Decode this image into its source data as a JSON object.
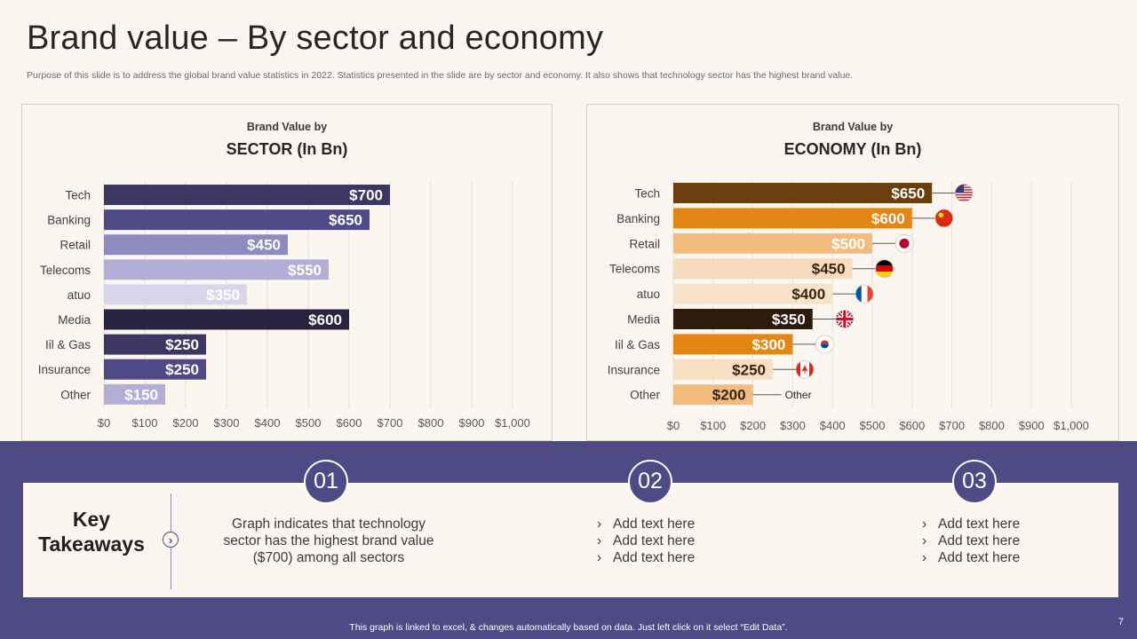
{
  "header": {
    "title": "Brand value – By sector and economy",
    "subtitle": "Purpose of this slide is to address the global brand value statistics in 2022. Statistics presented in the slide are by sector and economy. It also shows that technology sector has the highest brand value."
  },
  "colors": {
    "primary": "#4f4a86",
    "background": "#fcf6f0",
    "sector_bars": [
      "#3c3760",
      "#4f4a86",
      "#8f8ac0",
      "#b2aed6",
      "#d9d6eb",
      "#28233f",
      "#3c3760",
      "#4f4a86",
      "#b2aed6"
    ],
    "economy_bars": [
      "#6b3e0f",
      "#e48614",
      "#f2bc7e",
      "#f7dbbd",
      "#f7e3cc",
      "#2c1a0a",
      "#e48614",
      "#f7dfc4",
      "#f2bc7e"
    ]
  },
  "chart_data": [
    {
      "id": "sector",
      "type": "bar",
      "orientation": "horizontal",
      "kicker": "Brand Value by",
      "title": "SECTOR (In Bn)",
      "categories": [
        "Tech",
        "Banking",
        "Retail",
        "Telecoms",
        "atuo",
        "Media",
        "Iil & Gas",
        "Insurance",
        "Other"
      ],
      "values": [
        700,
        650,
        450,
        550,
        350,
        600,
        250,
        250,
        150
      ],
      "labels": [
        "$700",
        "$650",
        "$450",
        "$550",
        "$350",
        "$600",
        "$250",
        "$250",
        "$150"
      ],
      "xlim": [
        0,
        1000
      ],
      "xticks": [
        "$0",
        "$100",
        "$200",
        "$300",
        "$400",
        "$500",
        "$600",
        "$700",
        "$800",
        "$900",
        "$1,000"
      ],
      "grid": true
    },
    {
      "id": "economy",
      "type": "bar",
      "orientation": "horizontal",
      "kicker": "Brand Value by",
      "title": "ECONOMY (In Bn)",
      "categories": [
        "Tech",
        "Banking",
        "Retail",
        "Telecoms",
        "atuo",
        "Media",
        "Iil & Gas",
        "Insurance",
        "Other"
      ],
      "values": [
        650,
        600,
        500,
        450,
        400,
        350,
        300,
        250,
        200
      ],
      "labels": [
        "$650",
        "$600",
        "$500",
        "$450",
        "$400",
        "$350",
        "$300",
        "$250",
        "$200"
      ],
      "markers": [
        "us-flag-icon",
        "china-flag-icon",
        "japan-flag-icon",
        "germany-flag-icon",
        "france-flag-icon",
        "uk-flag-icon",
        "korea-flag-icon",
        "canada-flag-icon",
        "Other"
      ],
      "xlim": [
        0,
        1000
      ],
      "xticks": [
        "$0",
        "$100",
        "$200",
        "$300",
        "$400",
        "$500",
        "$600",
        "$700",
        "$800",
        "$900",
        "$1,000"
      ],
      "grid": true
    }
  ],
  "takeaways": {
    "title_line1": "Key",
    "title_line2": "Takeaways",
    "columns": [
      {
        "number": "01",
        "lines": [
          "Graph indicates that  technology",
          "sector has the highest brand value",
          "($700) among all sectors"
        ]
      },
      {
        "number": "02",
        "bullets": [
          "Add text here",
          "Add text here",
          "Add text here"
        ]
      },
      {
        "number": "03",
        "bullets": [
          "Add text here",
          "Add text here",
          "Add text here"
        ]
      }
    ]
  },
  "footer": {
    "note": "This graph is linked to excel, & changes automatically based on data. Just left click on it select “Edit Data”.",
    "page_number": "7"
  }
}
